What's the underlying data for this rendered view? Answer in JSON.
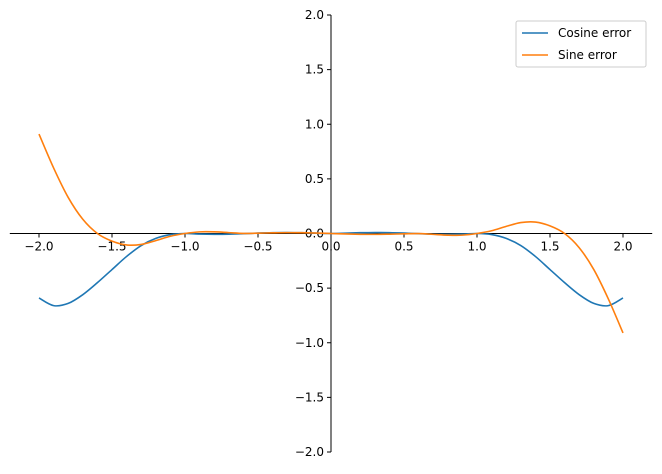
{
  "chart_data": {
    "type": "line",
    "title": "",
    "xlabel": "",
    "ylabel": "",
    "xlim": [
      -2.2,
      2.2
    ],
    "ylim": [
      -2.0,
      2.0
    ],
    "spines": "centered at origin",
    "grid": false,
    "legend": "top-right",
    "x_ticks": [
      "−2.0",
      "−1.5",
      "−1.0",
      "−0.5",
      "0.0",
      "0.5",
      "1.0",
      "1.5",
      "2.0"
    ],
    "y_ticks": [
      "−2.0",
      "−1.5",
      "−1.0",
      "−0.5",
      "0.0",
      "0.5",
      "1.0",
      "1.5",
      "2.0"
    ],
    "x": [
      -2.0,
      -1.9,
      -1.8,
      -1.7,
      -1.6,
      -1.5,
      -1.4,
      -1.3,
      -1.2,
      -1.1,
      -1.0,
      -0.9,
      -0.8,
      -0.7,
      -0.6,
      -0.5,
      -0.4,
      -0.3,
      -0.2,
      -0.1,
      0.0,
      0.1,
      0.2,
      0.3,
      0.4,
      0.5,
      0.6,
      0.7,
      0.8,
      0.9,
      1.0,
      1.1,
      1.2,
      1.3,
      1.4,
      1.5,
      1.6,
      1.7,
      1.8,
      1.9,
      2.0
    ],
    "series": [
      {
        "name": "Cosine error",
        "color": "#1f77b4",
        "values": [
          -0.59,
          -0.66,
          -0.64,
          -0.56,
          -0.45,
          -0.33,
          -0.21,
          -0.11,
          -0.045,
          -0.01,
          0,
          -0.005,
          -0.007,
          -0.006,
          -0.002,
          0.004,
          0.008,
          0.009,
          0.007,
          0.003,
          0,
          0.003,
          0.007,
          0.009,
          0.008,
          0.004,
          -0.002,
          -0.006,
          -0.007,
          -0.005,
          0,
          -0.01,
          -0.045,
          -0.11,
          -0.21,
          -0.33,
          -0.45,
          -0.56,
          -0.64,
          -0.66,
          -0.59
        ]
      },
      {
        "name": "Sine error",
        "color": "#ff7f0e",
        "values": [
          0.91,
          0.6,
          0.33,
          0.13,
          0,
          -0.07,
          -0.105,
          -0.1,
          -0.065,
          -0.025,
          0,
          0.015,
          0.015,
          0.008,
          0.001,
          0.003,
          0.006,
          0.008,
          0.007,
          0.004,
          0,
          -0.004,
          -0.007,
          -0.008,
          -0.006,
          -0.003,
          -0.001,
          -0.008,
          -0.015,
          -0.015,
          0,
          0.025,
          0.065,
          0.1,
          0.105,
          0.07,
          0,
          -0.13,
          -0.33,
          -0.6,
          -0.91
        ]
      }
    ]
  }
}
